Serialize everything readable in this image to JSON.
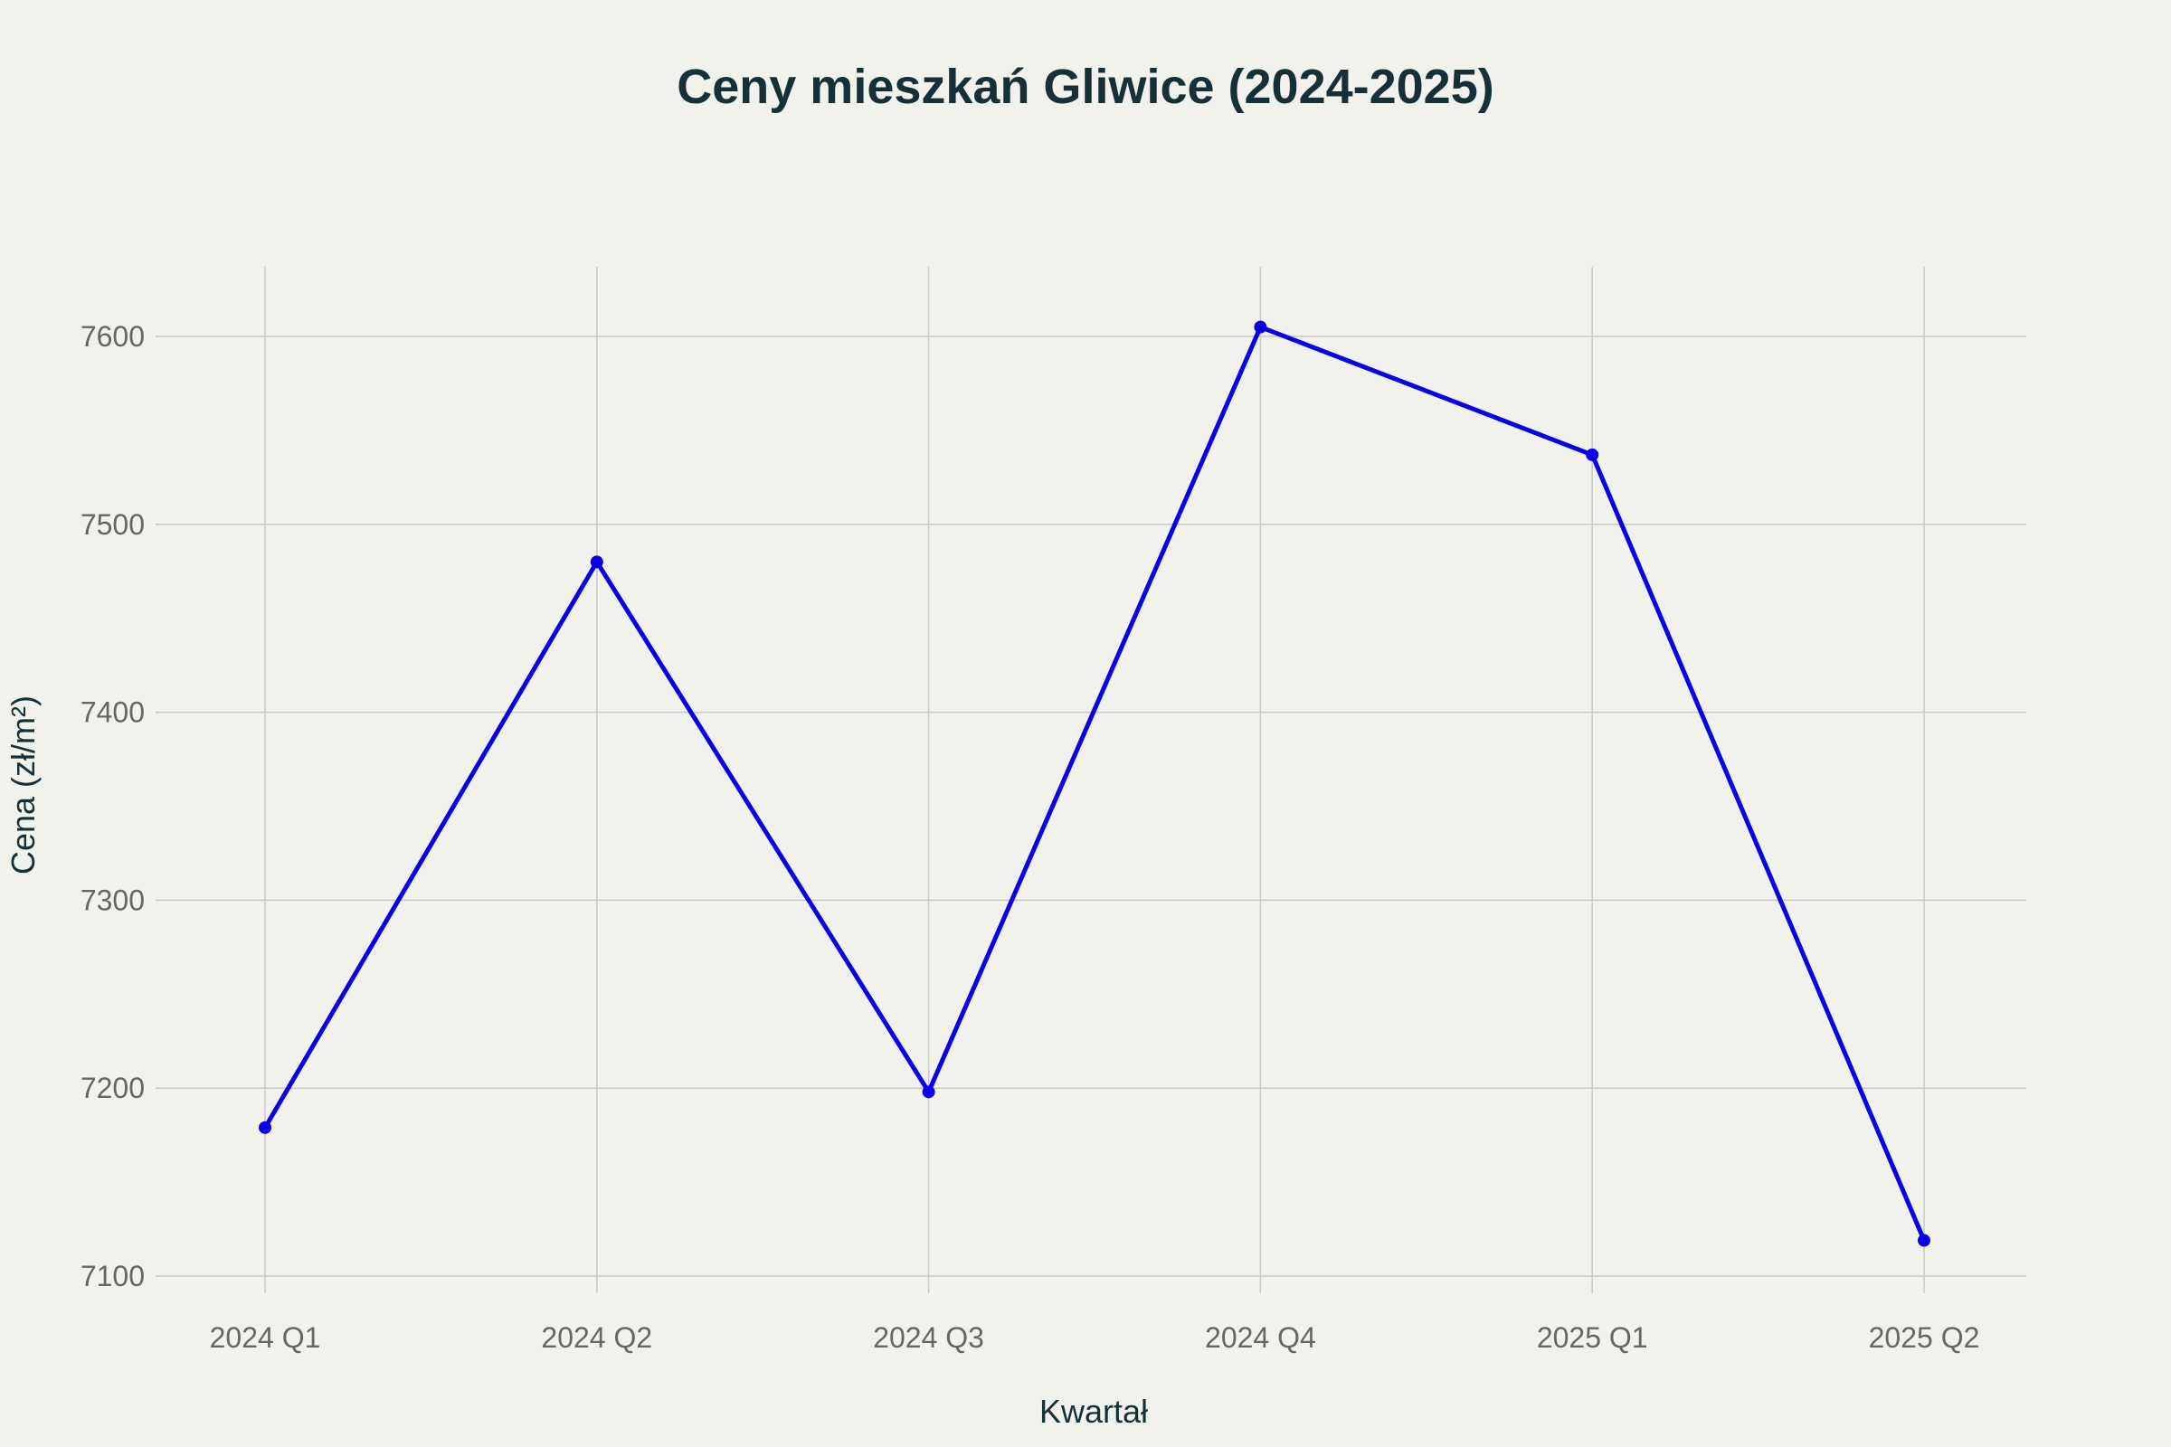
{
  "chart_data": {
    "type": "line",
    "title": "Ceny mieszkań Gliwice (2024-2025)",
    "xlabel": "Kwartał",
    "ylabel": "Cena (zł/m²)",
    "categories": [
      "2024 Q1",
      "2024 Q2",
      "2024 Q3",
      "2024 Q4",
      "2025 Q1",
      "2025 Q2"
    ],
    "series": [
      {
        "values": [
          7179,
          7480,
          7198,
          7605,
          7537,
          7119
        ],
        "color": "#0a00e6"
      }
    ],
    "yticks": [
      7100,
      7200,
      7300,
      7400,
      7500,
      7600
    ],
    "ylim": [
      7081,
      7637
    ],
    "grid": true,
    "legend": "none",
    "background_color": "#f2f2ed"
  }
}
